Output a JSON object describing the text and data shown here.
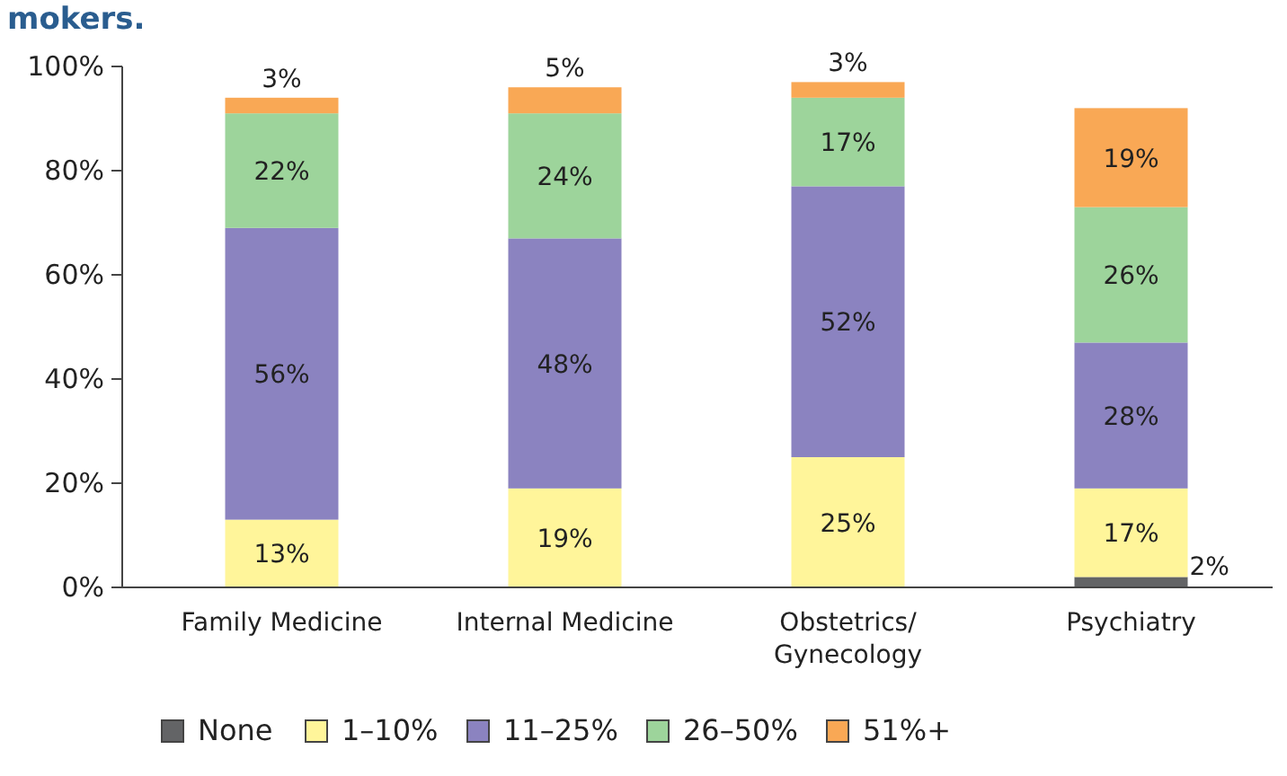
{
  "chart_data": {
    "type": "bar",
    "stacked": true,
    "title": "mokers.",
    "categories": [
      "Family Medicine",
      "Internal Medicine",
      "Obstetrics/ Gynecology",
      "Psychiatry"
    ],
    "series": [
      {
        "name": "None",
        "color": "#636466",
        "values": [
          0,
          0,
          0,
          2
        ],
        "value_labels": [
          null,
          null,
          null,
          "2%"
        ]
      },
      {
        "name": "1–10%",
        "color": "#fff59a",
        "values": [
          13,
          19,
          25,
          17
        ],
        "value_labels": [
          "13%",
          "19%",
          "25%",
          "17%"
        ]
      },
      {
        "name": "11–25%",
        "color": "#8b83c0",
        "values": [
          56,
          48,
          52,
          28
        ],
        "value_labels": [
          "56%",
          "48%",
          "52%",
          "28%"
        ]
      },
      {
        "name": "26–50%",
        "color": "#9dd49b",
        "values": [
          22,
          24,
          17,
          26
        ],
        "value_labels": [
          "22%",
          "24%",
          "17%",
          "26%"
        ]
      },
      {
        "name": "51%+",
        "color": "#f9a855",
        "values": [
          3,
          5,
          3,
          19
        ],
        "value_labels": [
          "3%",
          "5%",
          "3%",
          "19%"
        ]
      }
    ],
    "ylim": [
      0,
      100
    ],
    "yticks": [
      {
        "value": 0,
        "label": "0%"
      },
      {
        "value": 20,
        "label": "20%"
      },
      {
        "value": 40,
        "label": "40%"
      },
      {
        "value": 60,
        "label": "60%"
      },
      {
        "value": 80,
        "label": "80%"
      },
      {
        "value": 100,
        "label": "100%"
      }
    ],
    "grid": false,
    "legend": "bottom"
  }
}
